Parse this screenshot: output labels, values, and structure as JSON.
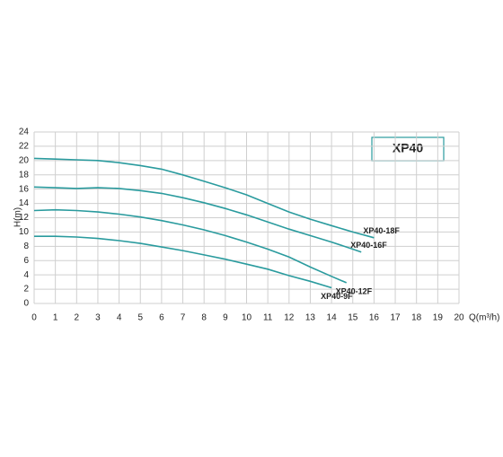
{
  "chart_data": {
    "type": "line",
    "title": "XP40",
    "xlabel": "Q(m³/h)",
    "ylabel": "H(m)",
    "xlim": [
      0,
      20
    ],
    "ylim": [
      0,
      24
    ],
    "xticks": [
      0,
      1,
      2,
      3,
      4,
      5,
      6,
      7,
      8,
      9,
      10,
      11,
      12,
      13,
      14,
      15,
      16,
      17,
      18,
      19,
      20
    ],
    "yticks": [
      0,
      2,
      4,
      6,
      8,
      10,
      12,
      14,
      16,
      18,
      20,
      22,
      24
    ],
    "grid": true,
    "series": [
      {
        "name": "XP40-18F",
        "color": "#2a9b9e",
        "x": [
          0,
          1,
          2,
          3,
          4,
          5,
          6,
          7,
          8,
          9,
          10,
          11,
          12,
          13,
          14,
          15,
          16
        ],
        "values": [
          20.3,
          20.2,
          20.1,
          20.0,
          19.7,
          19.3,
          18.8,
          18.0,
          17.1,
          16.2,
          15.2,
          14.0,
          12.8,
          11.8,
          10.9,
          10.0,
          9.2
        ]
      },
      {
        "name": "XP40-16F",
        "color": "#2a9b9e",
        "x": [
          0,
          1,
          2,
          3,
          4,
          5,
          6,
          7,
          8,
          9,
          10,
          11,
          12,
          13,
          14,
          15,
          15.4
        ],
        "values": [
          16.3,
          16.2,
          16.1,
          16.2,
          16.1,
          15.8,
          15.4,
          14.8,
          14.1,
          13.3,
          12.4,
          11.4,
          10.4,
          9.5,
          8.6,
          7.6,
          7.2
        ]
      },
      {
        "name": "XP40-12F",
        "color": "#2a9b9e",
        "x": [
          0,
          1,
          2,
          3,
          4,
          5,
          6,
          7,
          8,
          9,
          10,
          11,
          12,
          13,
          14,
          14.7
        ],
        "values": [
          13.0,
          13.1,
          13.0,
          12.8,
          12.5,
          12.1,
          11.6,
          11.0,
          10.3,
          9.5,
          8.6,
          7.6,
          6.5,
          5.1,
          3.8,
          2.9
        ]
      },
      {
        "name": "XP40-9F",
        "color": "#2a9b9e",
        "x": [
          0,
          1,
          2,
          3,
          4,
          5,
          6,
          7,
          8,
          9,
          10,
          11,
          12,
          13,
          14
        ],
        "values": [
          9.4,
          9.4,
          9.3,
          9.1,
          8.8,
          8.4,
          7.9,
          7.4,
          6.8,
          6.2,
          5.5,
          4.8,
          3.9,
          3.1,
          2.2
        ]
      }
    ]
  }
}
